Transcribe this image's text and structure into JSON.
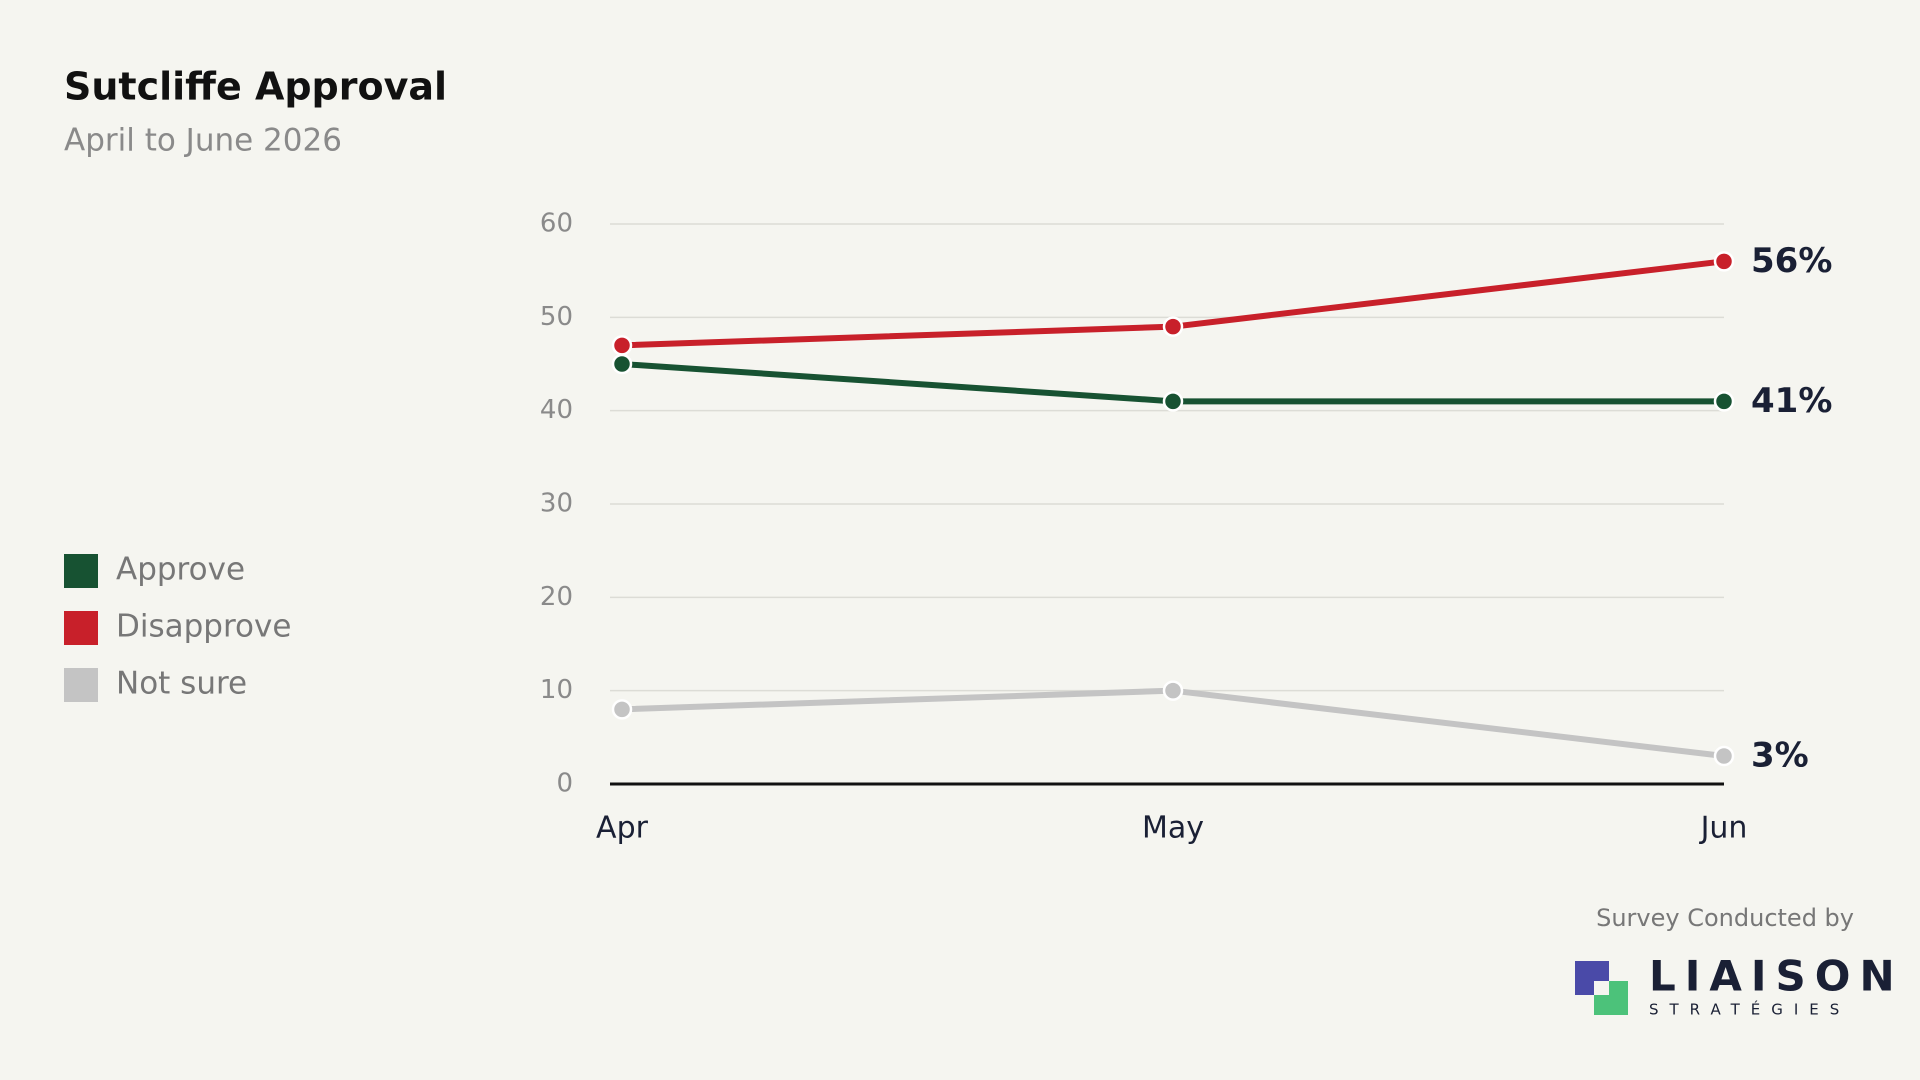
{
  "chart_data": {
    "type": "line",
    "title": "Sutcliffe Approval",
    "subtitle": "April to June 2026",
    "categories": [
      "Apr",
      "May",
      "Jun"
    ],
    "series": [
      {
        "name": "Approve",
        "color": "#175232",
        "values": [
          45,
          41,
          41
        ],
        "value_labels": [
          null,
          null,
          "41%"
        ]
      },
      {
        "name": "Disapprove",
        "color": "#c8202a",
        "values": [
          47,
          49,
          56
        ],
        "value_labels": [
          null,
          null,
          "56%"
        ]
      },
      {
        "name": "Not sure",
        "color": "#c4c4c4",
        "values": [
          8,
          10,
          3
        ],
        "value_labels": [
          null,
          null,
          "3%"
        ]
      }
    ],
    "ylim": [
      0,
      60
    ],
    "yticks": [
      0,
      10,
      20,
      30,
      40,
      50,
      60
    ],
    "grid": true,
    "legend": "left"
  },
  "branding": {
    "credit": "Survey Conducted by",
    "logo_name": "LIAISON",
    "logo_sub": "STRATÉGIES"
  }
}
